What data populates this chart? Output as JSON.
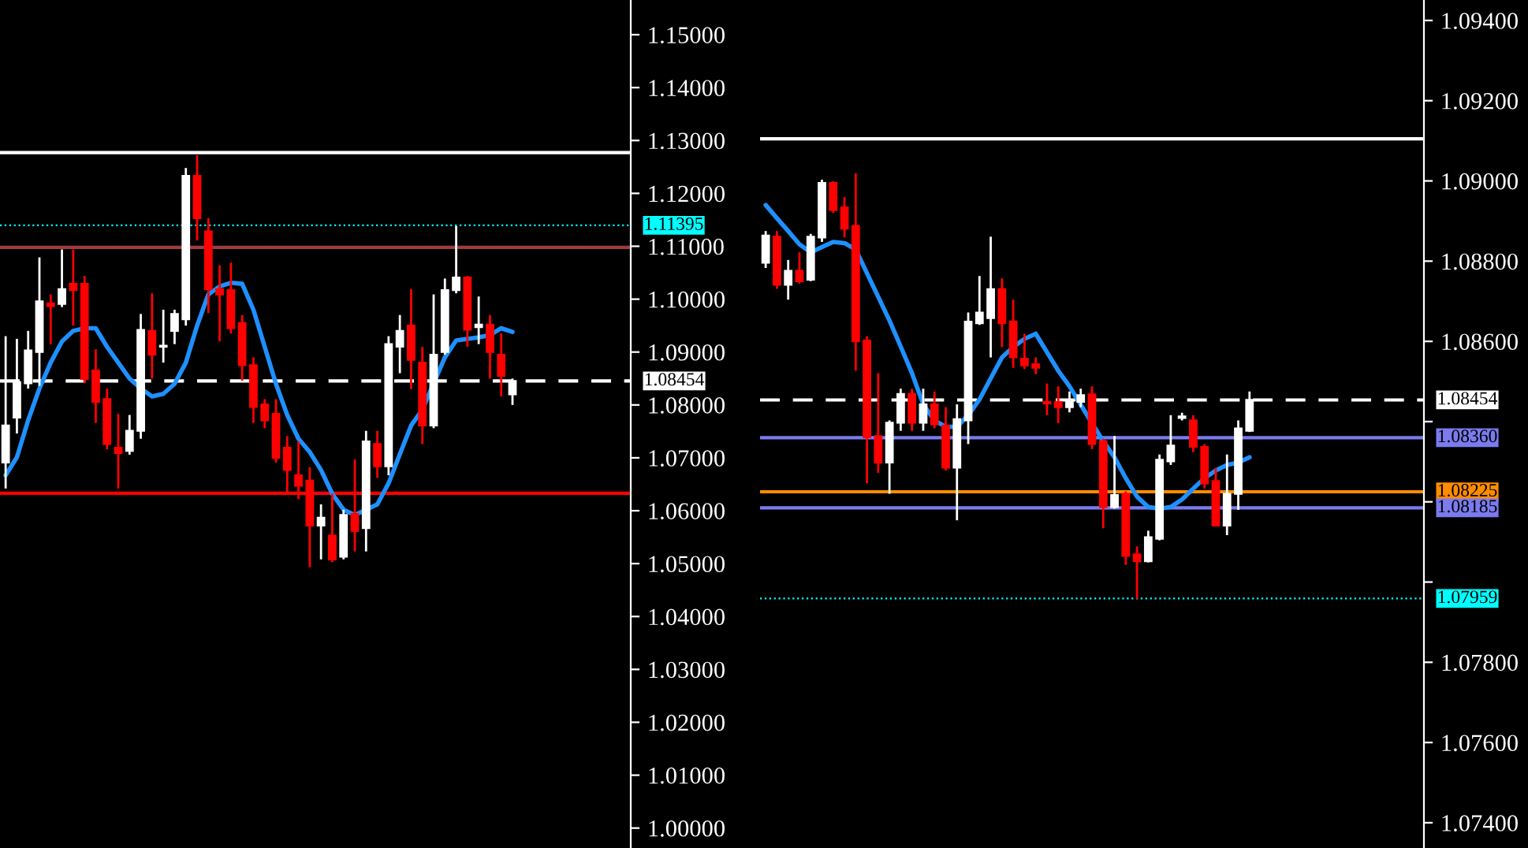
{
  "chart_data": [
    {
      "type": "candlestick",
      "categories": [
        null,
        null,
        null,
        null,
        null,
        null,
        null,
        null,
        null,
        null,
        null,
        null,
        null,
        null,
        null,
        null,
        null,
        null,
        null,
        null,
        null,
        null,
        null,
        null,
        null,
        null,
        null,
        null,
        null,
        null,
        null,
        null,
        null,
        null,
        null,
        null,
        null,
        null,
        null,
        null,
        null,
        null,
        null,
        null,
        null,
        null,
        null,
        null,
        null,
        null,
        null,
        null,
        null,
        null,
        null,
        null
      ],
      "ohlc": [
        [
          1.0691,
          1.093,
          1.0642,
          1.0761
        ],
        [
          1.0776,
          1.0925,
          1.0746,
          1.0843
        ],
        [
          1.0841,
          1.094,
          1.0831,
          1.0903
        ],
        [
          1.09,
          1.1079,
          1.0836,
          1.0996
        ],
        [
          1.0992,
          1.1009,
          1.0915,
          1.0987
        ],
        [
          1.0991,
          1.1094,
          1.0985,
          1.1019
        ],
        [
          1.1029,
          1.1094,
          1.095,
          1.1017
        ],
        [
          1.1029,
          1.1044,
          1.0841,
          1.0849
        ],
        [
          1.0865,
          1.0905,
          1.0766,
          1.0806
        ],
        [
          1.0811,
          1.0831,
          1.0716,
          1.0726
        ],
        [
          1.0719,
          1.0783,
          1.0642,
          1.0709
        ],
        [
          1.0713,
          1.0781,
          1.0706,
          1.0751
        ],
        [
          1.0751,
          1.0972,
          1.0736,
          1.0942
        ],
        [
          1.094,
          1.1011,
          1.085,
          1.0895
        ],
        [
          1.091,
          1.098,
          1.088,
          1.0912
        ],
        [
          1.094,
          1.098,
          1.0915,
          1.0972
        ],
        [
          1.0962,
          1.1248,
          1.095,
          1.1233
        ],
        [
          1.1233,
          1.1272,
          1.1111,
          1.1153
        ],
        [
          1.1128,
          1.1153,
          1.0974,
          1.1019
        ],
        [
          1.1019,
          1.1064,
          1.092,
          1.1009
        ],
        [
          1.1017,
          1.1069,
          1.0935,
          1.0945
        ],
        [
          1.0955,
          1.097,
          1.0846,
          1.0875
        ],
        [
          1.0875,
          1.089,
          1.0766,
          1.0796
        ],
        [
          1.0801,
          1.0811,
          1.0756,
          1.0771
        ],
        [
          1.0783,
          1.0811,
          1.0691,
          1.07
        ],
        [
          1.0719,
          1.0741,
          1.0632,
          1.0677
        ],
        [
          1.0667,
          1.0731,
          1.0622,
          1.0647
        ],
        [
          1.0657,
          1.0682,
          1.0493,
          1.0572
        ],
        [
          1.0572,
          1.0612,
          1.0508,
          1.0587
        ],
        [
          1.0553,
          1.0632,
          1.0503,
          1.0508
        ],
        [
          1.0513,
          1.0602,
          1.0508,
          1.0592
        ],
        [
          1.0594,
          1.0697,
          1.0523,
          1.0562
        ],
        [
          1.0567,
          1.0751,
          1.0523,
          1.0731
        ],
        [
          1.0726,
          1.0751,
          1.0662,
          1.0684
        ],
        [
          1.0684,
          1.093,
          1.0667,
          1.0915
        ],
        [
          1.091,
          1.097,
          1.086,
          1.094
        ],
        [
          1.095,
          1.1019,
          1.083,
          1.0885
        ],
        [
          1.088,
          1.091,
          1.0726,
          1.0761
        ],
        [
          1.0761,
          1.1009,
          1.0756,
          1.0895
        ],
        [
          1.09,
          1.1039,
          1.0895,
          1.1017
        ],
        [
          1.1017,
          1.1138,
          1.1011,
          1.1041
        ],
        [
          1.1041,
          1.1044,
          1.091,
          1.0942
        ],
        [
          1.0947,
          1.1005,
          1.0915,
          1.0952
        ],
        [
          1.0952,
          1.097,
          1.085,
          1.09
        ],
        [
          1.0895,
          1.0935,
          1.0816,
          1.0855
        ],
        [
          1.082,
          1.085,
          1.08,
          1.08454
        ],
        null,
        null,
        null,
        null,
        null,
        null,
        null,
        null,
        null,
        null
      ],
      "series": [
        {
          "type": "line",
          "color": "#1e90ff",
          "values": [
            1.0667,
            1.0701,
            1.0771,
            1.0831,
            1.088,
            1.092,
            1.094,
            1.0945,
            1.0945,
            1.091,
            1.088,
            1.085,
            1.0831,
            1.0816,
            1.0821,
            1.084,
            1.088,
            1.095,
            1.1009,
            1.1024,
            1.1031,
            1.1029,
            1.098,
            1.091,
            1.084,
            1.0781,
            1.0736,
            1.0711,
            1.0677,
            1.0632,
            1.0602,
            1.0592,
            1.0602,
            1.0612,
            1.0652,
            1.0707,
            1.0761,
            1.0791,
            1.0841,
            1.089,
            1.0922,
            1.0925,
            1.0928,
            1.0932,
            1.0945,
            1.0938,
            null,
            null,
            null,
            null,
            null,
            null,
            null,
            null,
            null,
            null
          ]
        }
      ],
      "ylim": [
        0.99623,
        1.15656
      ],
      "yticks": [
        {
          "value": 1.0,
          "label": "1.00000"
        },
        {
          "value": 1.01,
          "label": "1.01000"
        },
        {
          "value": 1.02,
          "label": "1.02000"
        },
        {
          "value": 1.03,
          "label": "1.03000"
        },
        {
          "value": 1.04,
          "label": "1.04000"
        },
        {
          "value": 1.05,
          "label": "1.05000"
        },
        {
          "value": 1.06,
          "label": "1.06000"
        },
        {
          "value": 1.07,
          "label": "1.07000"
        },
        {
          "value": 1.08,
          "label": "1.08000"
        },
        {
          "value": 1.09,
          "label": "1.09000"
        },
        {
          "value": 1.1,
          "label": "1.10000"
        },
        {
          "value": 1.11,
          "label": "1.11000"
        },
        {
          "value": 1.12,
          "label": "1.12000"
        },
        {
          "value": 1.13,
          "label": "1.13000"
        },
        {
          "value": 1.14,
          "label": "1.14000"
        },
        {
          "value": 1.15,
          "label": "1.15000"
        }
      ],
      "ref_lines": [
        {
          "axis": "y",
          "value": 1.1277,
          "color": "#ffffff",
          "line_style": "solid"
        },
        {
          "axis": "y",
          "value": 1.1098,
          "color": "#a03c3c",
          "line_style": "solid"
        },
        {
          "axis": "y",
          "value": 1.0633,
          "color": "#ff0000",
          "line_style": "solid"
        },
        {
          "axis": "y",
          "value": 1.08454,
          "label": "1.08454",
          "color": "#ffffff",
          "line_style": "dashed"
        },
        {
          "axis": "y",
          "value": 1.11395,
          "label": "1.11395",
          "color": "#00ffff",
          "line_style": "dotted"
        }
      ],
      "tick_labels": "y",
      "grid": false,
      "legend": false
    },
    {
      "type": "candlestick",
      "categories": [
        null,
        null,
        null,
        null,
        null,
        null,
        null,
        null,
        null,
        null,
        null,
        null,
        null,
        null,
        null,
        null,
        null,
        null,
        null,
        null,
        null,
        null,
        null,
        null,
        null,
        null,
        null,
        null,
        null,
        null,
        null,
        null,
        null,
        null,
        null,
        null,
        null,
        null,
        null,
        null,
        null,
        null,
        null,
        null,
        null,
        null,
        null,
        null,
        null,
        null,
        null,
        null,
        null,
        null,
        null,
        null,
        null,
        null,
        null
      ],
      "ohlc": [
        [
          1.08796,
          1.08875,
          1.08783,
          1.08864
        ],
        [
          1.08861,
          1.08875,
          1.08731,
          1.08741
        ],
        [
          1.08741,
          1.08803,
          1.08704,
          1.08776
        ],
        [
          1.08776,
          1.08822,
          1.08744,
          1.0875
        ],
        [
          1.08754,
          1.08868,
          1.0875,
          1.08861
        ],
        [
          1.08859,
          1.09003,
          1.08848,
          1.08995
        ],
        [
          1.08995,
          1.08999,
          1.0892,
          1.08927
        ],
        [
          1.08934,
          1.0896,
          1.08859,
          1.08881
        ],
        [
          1.08888,
          1.09019,
          1.08527,
          1.086
        ],
        [
          1.08602,
          1.08613,
          1.08246,
          1.08361
        ],
        [
          1.08364,
          1.08521,
          1.08272,
          1.08298
        ],
        [
          1.08298,
          1.08403,
          1.0822,
          1.08397
        ],
        [
          1.08397,
          1.08482,
          1.08377,
          1.08469
        ],
        [
          1.08469,
          1.08482,
          1.08377,
          1.08397
        ],
        [
          1.08397,
          1.08482,
          1.08377,
          1.08443
        ],
        [
          1.08443,
          1.08475,
          1.08383,
          1.08393
        ],
        [
          1.0839,
          1.08436,
          1.08278,
          1.08285
        ],
        [
          1.08285,
          1.08443,
          1.08154,
          1.08406
        ],
        [
          1.08403,
          1.08672,
          1.08344,
          1.08649
        ],
        [
          1.08645,
          1.08763,
          1.08641,
          1.08672
        ],
        [
          1.08658,
          1.08861,
          1.0856,
          1.0873
        ],
        [
          1.0873,
          1.08757,
          1.08586,
          1.08645
        ],
        [
          1.08649,
          1.08704,
          1.08534,
          1.0856
        ],
        [
          1.08557,
          1.08619,
          1.08531,
          1.0854
        ],
        [
          1.08543,
          1.0856,
          1.08518,
          1.08534
        ],
        [
          1.08449,
          1.08495,
          1.08416,
          1.08445
        ],
        [
          1.08449,
          1.08488,
          1.08396,
          1.08436
        ],
        [
          1.08436,
          1.08475,
          1.08423,
          1.08449
        ],
        [
          1.08449,
          1.08482,
          1.08436,
          1.08466
        ],
        [
          1.08468,
          1.08488,
          1.08331,
          1.08344
        ],
        [
          1.08351,
          1.08357,
          1.08134,
          1.08187
        ],
        [
          1.08187,
          1.08364,
          1.08183,
          1.08217
        ],
        [
          1.0822,
          1.08226,
          1.08043,
          1.08065
        ],
        [
          1.08069,
          1.08089,
          1.07958,
          1.08052
        ],
        [
          1.08052,
          1.08128,
          1.08049,
          1.08112
        ],
        [
          1.08108,
          1.08318,
          1.08104,
          1.08305
        ],
        [
          1.08301,
          1.08416,
          1.08292,
          1.0834
        ],
        [
          1.08409,
          1.08422,
          1.08403,
          1.08413
        ],
        [
          1.08403,
          1.08416,
          1.08324,
          1.08337
        ],
        [
          1.08337,
          1.08344,
          1.08233,
          1.08246
        ],
        [
          1.08252,
          1.08285,
          1.08138,
          1.08141
        ],
        [
          1.08141,
          1.08318,
          1.08117,
          1.0822
        ],
        [
          1.0822,
          1.08403,
          1.0818,
          1.08383
        ],
        [
          1.08377,
          1.08475,
          1.08374,
          1.08454
        ],
        null,
        null,
        null,
        null,
        null,
        null,
        null,
        null,
        null,
        null,
        null,
        null,
        null,
        null,
        null
      ],
      "series": [
        {
          "type": "line",
          "color": "#1e90ff",
          "values": [
            1.0894,
            1.08907,
            1.08875,
            1.08842,
            1.08822,
            1.08835,
            1.08848,
            1.08845,
            1.08829,
            1.0877,
            1.08711,
            1.08652,
            1.08587,
            1.08521,
            1.08443,
            1.08403,
            1.08387,
            1.08387,
            1.08416,
            1.08455,
            1.08508,
            1.0856,
            1.08586,
            1.08606,
            1.08619,
            1.08573,
            1.08527,
            1.08488,
            1.08442,
            1.08396,
            1.08351,
            1.08311,
            1.08259,
            1.08213,
            1.08187,
            1.08183,
            1.08187,
            1.08206,
            1.08233,
            1.08259,
            1.08278,
            1.08292,
            1.08298,
            1.08311,
            null,
            null,
            null,
            null,
            null,
            null,
            null,
            null,
            null,
            null,
            null,
            null,
            null,
            null,
            null
          ]
        }
      ],
      "ylim": [
        1.07337,
        1.09451
      ],
      "yticks": [
        {
          "value": 1.074,
          "label": "1.07400"
        },
        {
          "value": 1.076,
          "label": "1.07600"
        },
        {
          "value": 1.078,
          "label": "1.07800"
        },
        {
          "value": 1.08,
          "label": null
        },
        {
          "value": 1.082,
          "label": null
        },
        {
          "value": 1.084,
          "label": null
        },
        {
          "value": 1.086,
          "label": "1.08600"
        },
        {
          "value": 1.088,
          "label": "1.08800"
        },
        {
          "value": 1.09,
          "label": "1.09000"
        },
        {
          "value": 1.092,
          "label": "1.09200"
        },
        {
          "value": 1.094,
          "label": "1.09400"
        }
      ],
      "ref_lines": [
        {
          "axis": "y",
          "value": 1.09105,
          "color": "#ffffff",
          "line_style": "solid"
        },
        {
          "axis": "y",
          "value": 1.0836,
          "label": "1.08360",
          "color": "#7b7bef",
          "line_style": "solid"
        },
        {
          "axis": "y",
          "value": 1.08225,
          "label": "1.08225",
          "color": "#ff8c00",
          "line_style": "solid"
        },
        {
          "axis": "y",
          "value": 1.08185,
          "label": "1.08185",
          "color": "#7b7bef",
          "line_style": "solid"
        },
        {
          "axis": "y",
          "value": 1.08454,
          "label": "1.08454",
          "color": "#ffffff",
          "line_style": "dashed"
        },
        {
          "axis": "y",
          "value": 1.07959,
          "label": "1.07959",
          "color": "#00ffff",
          "line_style": "dotted"
        }
      ],
      "tick_labels": "y",
      "grid": false,
      "legend": false
    }
  ]
}
